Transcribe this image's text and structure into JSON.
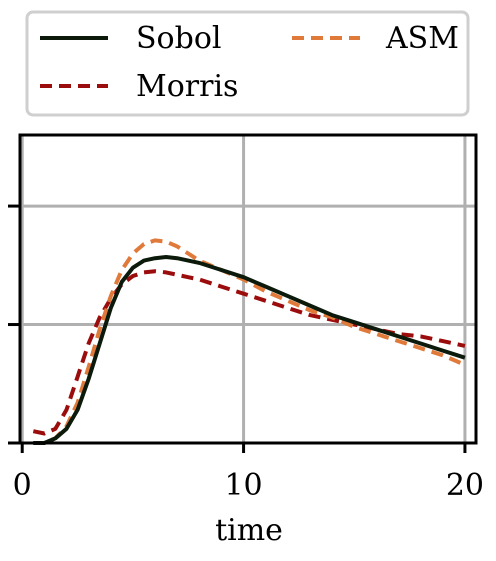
{
  "chart_data": {
    "type": "line",
    "xlabel": "time",
    "ylabel": "",
    "title": "",
    "xlim": [
      -0.1,
      20.5
    ],
    "ylim": [
      0,
      1.3
    ],
    "xticks": [
      0,
      10,
      20
    ],
    "yticks": [
      0,
      0.5,
      1.0
    ],
    "grid": true,
    "legend_placement": "top (above plot, 2 columns)",
    "series": [
      {
        "name": "Sobol",
        "color": "#0b1a0b",
        "dash": "solid",
        "x": [
          0.5,
          1,
          1.5,
          2,
          2.5,
          3,
          3.5,
          4,
          4.5,
          5,
          5.5,
          6,
          6.5,
          7,
          7.5,
          8,
          9,
          10,
          11,
          12,
          13,
          14,
          15,
          16,
          17,
          18,
          19,
          20
        ],
        "y": [
          0.0,
          0.0,
          0.02,
          0.06,
          0.14,
          0.27,
          0.42,
          0.57,
          0.68,
          0.74,
          0.77,
          0.78,
          0.785,
          0.78,
          0.77,
          0.76,
          0.73,
          0.7,
          0.66,
          0.62,
          0.58,
          0.54,
          0.51,
          0.48,
          0.45,
          0.42,
          0.39,
          0.36
        ]
      },
      {
        "name": "Morris",
        "color": "#9b0c0c",
        "dash": "dashed",
        "x": [
          0.5,
          1,
          1.5,
          2,
          2.5,
          3,
          3.5,
          4,
          4.5,
          5,
          5.5,
          6,
          6.5,
          7,
          7.5,
          8,
          9,
          10,
          11,
          12,
          13,
          14,
          15,
          16,
          17,
          18,
          19,
          20
        ],
        "y": [
          0.05,
          0.04,
          0.06,
          0.14,
          0.28,
          0.42,
          0.53,
          0.61,
          0.67,
          0.705,
          0.72,
          0.725,
          0.72,
          0.71,
          0.7,
          0.69,
          0.66,
          0.63,
          0.6,
          0.57,
          0.54,
          0.52,
          0.5,
          0.48,
          0.46,
          0.45,
          0.43,
          0.41
        ]
      },
      {
        "name": "ASM",
        "color": "#e07a3b",
        "dash": "dashed",
        "x": [
          0.5,
          1,
          1.5,
          2,
          2.5,
          3,
          3.5,
          4,
          4.5,
          5,
          5.5,
          6,
          6.5,
          7,
          7.5,
          8,
          9,
          10,
          11,
          12,
          13,
          14,
          15,
          16,
          17,
          18,
          19,
          20
        ],
        "y": [
          0.0,
          0.0,
          0.02,
          0.07,
          0.17,
          0.32,
          0.48,
          0.62,
          0.73,
          0.8,
          0.84,
          0.855,
          0.85,
          0.83,
          0.8,
          0.77,
          0.73,
          0.69,
          0.64,
          0.6,
          0.56,
          0.53,
          0.49,
          0.46,
          0.43,
          0.4,
          0.37,
          0.33
        ]
      }
    ]
  }
}
